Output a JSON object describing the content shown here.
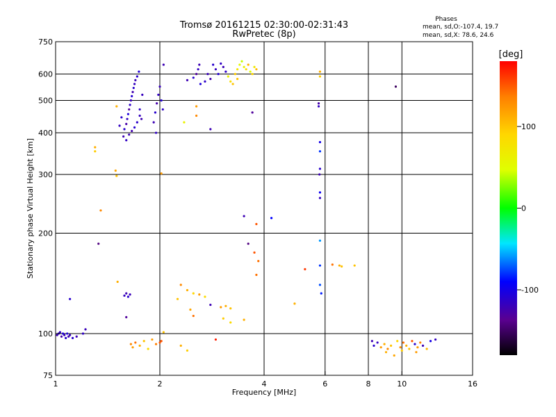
{
  "header": {
    "title": "Tromsø 20161215 02:30:00-02:31:43",
    "subtitle": "RwPretec (8p)"
  },
  "stats": {
    "heading": "Phases",
    "line_o": "mean, sd,O:-107.4, 19.7",
    "line_x": "mean, sd,X:  78.6, 24.6"
  },
  "colorbar": {
    "label": "[deg]",
    "min": -180,
    "max": 180,
    "ticks": [
      {
        "value": 100,
        "label": "100"
      },
      {
        "value": 0,
        "label": "0"
      },
      {
        "value": -100,
        "label": "-100"
      }
    ]
  },
  "chart_data": {
    "type": "scatter",
    "xlabel": "Frequency [MHz]",
    "ylabel": "Stationary phase Virtual Height [km]",
    "x_scale": "log",
    "y_scale": "log",
    "xlim": [
      1,
      16
    ],
    "ylim": [
      75,
      750
    ],
    "x_ticks": [
      {
        "value": 1,
        "label": "1"
      },
      {
        "value": 2,
        "label": "2"
      },
      {
        "value": 4,
        "label": "4"
      },
      {
        "value": 6,
        "label": "6"
      },
      {
        "value": 8,
        "label": "8"
      },
      {
        "value": 10,
        "label": "10"
      },
      {
        "value": 16,
        "label": "16"
      }
    ],
    "y_ticks": [
      {
        "value": 75,
        "label": "75"
      },
      {
        "value": 100,
        "label": "100"
      },
      {
        "value": 200,
        "label": "200"
      },
      {
        "value": 300,
        "label": "300"
      },
      {
        "value": 400,
        "label": "400"
      },
      {
        "value": 500,
        "label": "500"
      },
      {
        "value": 600,
        "label": "600"
      },
      {
        "value": 750,
        "label": "750"
      }
    ],
    "x_gridlines": [
      2,
      4,
      6,
      8,
      10
    ],
    "y_gridlines": [
      100,
      200,
      300,
      400,
      500,
      600
    ],
    "points": [
      {
        "x": 1.01,
        "y": 99,
        "phase": -120
      },
      {
        "x": 1.02,
        "y": 100,
        "phase": -110
      },
      {
        "x": 1.03,
        "y": 101,
        "phase": -115
      },
      {
        "x": 1.04,
        "y": 98,
        "phase": -125
      },
      {
        "x": 1.05,
        "y": 100,
        "phase": -105
      },
      {
        "x": 1.06,
        "y": 99,
        "phase": -118
      },
      {
        "x": 1.07,
        "y": 97,
        "phase": -112
      },
      {
        "x": 1.08,
        "y": 100,
        "phase": -108
      },
      {
        "x": 1.09,
        "y": 98,
        "phase": -122
      },
      {
        "x": 1.1,
        "y": 99,
        "phase": -116
      },
      {
        "x": 1.12,
        "y": 97,
        "phase": -110
      },
      {
        "x": 1.15,
        "y": 98,
        "phase": -120
      },
      {
        "x": 1.2,
        "y": 100,
        "phase": -114
      },
      {
        "x": 1.22,
        "y": 103,
        "phase": -118
      },
      {
        "x": 1.1,
        "y": 127,
        "phase": -110
      },
      {
        "x": 1.3,
        "y": 352,
        "phase": 95
      },
      {
        "x": 1.3,
        "y": 362,
        "phase": 110
      },
      {
        "x": 1.35,
        "y": 234,
        "phase": 130
      },
      {
        "x": 1.33,
        "y": 186,
        "phase": -140
      },
      {
        "x": 1.49,
        "y": 308,
        "phase": 115
      },
      {
        "x": 1.5,
        "y": 297,
        "phase": 100
      },
      {
        "x": 1.51,
        "y": 143,
        "phase": 110
      },
      {
        "x": 1.58,
        "y": 130,
        "phase": -115
      },
      {
        "x": 1.6,
        "y": 132,
        "phase": -120
      },
      {
        "x": 1.62,
        "y": 129,
        "phase": -110
      },
      {
        "x": 1.64,
        "y": 131,
        "phase": -118
      },
      {
        "x": 1.6,
        "y": 112,
        "phase": -130
      },
      {
        "x": 1.65,
        "y": 93,
        "phase": 130
      },
      {
        "x": 1.67,
        "y": 91,
        "phase": 120
      },
      {
        "x": 1.7,
        "y": 94,
        "phase": 140
      },
      {
        "x": 1.75,
        "y": 92,
        "phase": 110
      },
      {
        "x": 1.8,
        "y": 95,
        "phase": 100
      },
      {
        "x": 1.85,
        "y": 90,
        "phase": 85
      },
      {
        "x": 1.9,
        "y": 96,
        "phase": 120
      },
      {
        "x": 1.95,
        "y": 93,
        "phase": 135
      },
      {
        "x": 2.0,
        "y": 94,
        "phase": 150
      },
      {
        "x": 1.57,
        "y": 390,
        "phase": -120
      },
      {
        "x": 1.58,
        "y": 410,
        "phase": -110
      },
      {
        "x": 1.6,
        "y": 425,
        "phase": -125
      },
      {
        "x": 1.61,
        "y": 440,
        "phase": -115
      },
      {
        "x": 1.62,
        "y": 455,
        "phase": -105
      },
      {
        "x": 1.63,
        "y": 470,
        "phase": -130
      },
      {
        "x": 1.64,
        "y": 485,
        "phase": -112
      },
      {
        "x": 1.65,
        "y": 500,
        "phase": -118
      },
      {
        "x": 1.66,
        "y": 515,
        "phase": -108
      },
      {
        "x": 1.67,
        "y": 530,
        "phase": -122
      },
      {
        "x": 1.68,
        "y": 545,
        "phase": -110
      },
      {
        "x": 1.69,
        "y": 560,
        "phase": -116
      },
      {
        "x": 1.7,
        "y": 575,
        "phase": -119
      },
      {
        "x": 1.72,
        "y": 590,
        "phase": -111
      },
      {
        "x": 1.74,
        "y": 610,
        "phase": -107
      },
      {
        "x": 1.75,
        "y": 470,
        "phase": -113
      },
      {
        "x": 1.77,
        "y": 440,
        "phase": -121
      },
      {
        "x": 1.78,
        "y": 520,
        "phase": -117
      },
      {
        "x": 1.6,
        "y": 380,
        "phase": -114
      },
      {
        "x": 1.63,
        "y": 395,
        "phase": -119
      },
      {
        "x": 1.66,
        "y": 405,
        "phase": -123
      },
      {
        "x": 1.69,
        "y": 415,
        "phase": -109
      },
      {
        "x": 1.72,
        "y": 430,
        "phase": -112
      },
      {
        "x": 1.75,
        "y": 450,
        "phase": -116
      },
      {
        "x": 1.53,
        "y": 420,
        "phase": -115
      },
      {
        "x": 1.55,
        "y": 445,
        "phase": -110
      },
      {
        "x": 1.5,
        "y": 480,
        "phase": 110
      },
      {
        "x": 1.92,
        "y": 430,
        "phase": -120
      },
      {
        "x": 1.94,
        "y": 460,
        "phase": -110
      },
      {
        "x": 1.96,
        "y": 490,
        "phase": -125
      },
      {
        "x": 1.98,
        "y": 520,
        "phase": -115
      },
      {
        "x": 2.0,
        "y": 550,
        "phase": -118
      },
      {
        "x": 2.02,
        "y": 500,
        "phase": -108
      },
      {
        "x": 2.04,
        "y": 470,
        "phase": -112
      },
      {
        "x": 1.95,
        "y": 400,
        "phase": -114
      },
      {
        "x": 2.05,
        "y": 640,
        "phase": -120
      },
      {
        "x": 2.02,
        "y": 302,
        "phase": 120
      },
      {
        "x": 2.05,
        "y": 101,
        "phase": 100
      },
      {
        "x": 2.02,
        "y": 95,
        "phase": 150
      },
      {
        "x": 2.4,
        "y": 575,
        "phase": -120
      },
      {
        "x": 2.5,
        "y": 585,
        "phase": -110
      },
      {
        "x": 2.55,
        "y": 600,
        "phase": -130
      },
      {
        "x": 2.58,
        "y": 620,
        "phase": -115
      },
      {
        "x": 2.6,
        "y": 640,
        "phase": -120
      },
      {
        "x": 2.62,
        "y": 560,
        "phase": -105
      },
      {
        "x": 2.7,
        "y": 570,
        "phase": -112
      },
      {
        "x": 2.75,
        "y": 600,
        "phase": -118
      },
      {
        "x": 2.8,
        "y": 580,
        "phase": -122
      },
      {
        "x": 2.85,
        "y": 640,
        "phase": -110
      },
      {
        "x": 2.9,
        "y": 620,
        "phase": -116
      },
      {
        "x": 2.95,
        "y": 600,
        "phase": -108
      },
      {
        "x": 3.0,
        "y": 645,
        "phase": -114
      },
      {
        "x": 3.05,
        "y": 630,
        "phase": -119
      },
      {
        "x": 3.1,
        "y": 610,
        "phase": -112
      },
      {
        "x": 3.15,
        "y": 590,
        "phase": 60
      },
      {
        "x": 3.2,
        "y": 570,
        "phase": 80
      },
      {
        "x": 3.25,
        "y": 560,
        "phase": 100
      },
      {
        "x": 3.3,
        "y": 600,
        "phase": 95
      },
      {
        "x": 3.35,
        "y": 620,
        "phase": 75
      },
      {
        "x": 3.4,
        "y": 640,
        "phase": 50
      },
      {
        "x": 3.45,
        "y": 655,
        "phase": 40
      },
      {
        "x": 3.5,
        "y": 630,
        "phase": 60
      },
      {
        "x": 3.55,
        "y": 620,
        "phase": 85
      },
      {
        "x": 3.6,
        "y": 640,
        "phase": 110
      },
      {
        "x": 3.65,
        "y": 610,
        "phase": 45
      },
      {
        "x": 3.7,
        "y": 600,
        "phase": 90
      },
      {
        "x": 3.75,
        "y": 630,
        "phase": 70
      },
      {
        "x": 3.8,
        "y": 620,
        "phase": 105
      },
      {
        "x": 3.35,
        "y": 580,
        "phase": 100
      },
      {
        "x": 2.35,
        "y": 430,
        "phase": 60
      },
      {
        "x": 2.55,
        "y": 450,
        "phase": 130
      },
      {
        "x": 2.8,
        "y": 410,
        "phase": -120
      },
      {
        "x": 2.55,
        "y": 480,
        "phase": 120
      },
      {
        "x": 2.3,
        "y": 140,
        "phase": 130
      },
      {
        "x": 2.4,
        "y": 135,
        "phase": 110
      },
      {
        "x": 2.5,
        "y": 132,
        "phase": 90
      },
      {
        "x": 2.6,
        "y": 131,
        "phase": 120
      },
      {
        "x": 2.7,
        "y": 129,
        "phase": 85
      },
      {
        "x": 2.8,
        "y": 122,
        "phase": -120
      },
      {
        "x": 2.25,
        "y": 127,
        "phase": 100
      },
      {
        "x": 2.45,
        "y": 118,
        "phase": 115
      },
      {
        "x": 2.5,
        "y": 113,
        "phase": 140
      },
      {
        "x": 3.0,
        "y": 120,
        "phase": 120
      },
      {
        "x": 3.1,
        "y": 121,
        "phase": 110
      },
      {
        "x": 3.2,
        "y": 119,
        "phase": 100
      },
      {
        "x": 3.05,
        "y": 111,
        "phase": 95
      },
      {
        "x": 3.2,
        "y": 108,
        "phase": 85
      },
      {
        "x": 3.5,
        "y": 110,
        "phase": 110
      },
      {
        "x": 2.3,
        "y": 92,
        "phase": 110
      },
      {
        "x": 2.4,
        "y": 89,
        "phase": 95
      },
      {
        "x": 2.9,
        "y": 96,
        "phase": 170
      },
      {
        "x": 3.5,
        "y": 225,
        "phase": -120
      },
      {
        "x": 3.6,
        "y": 186,
        "phase": -140
      },
      {
        "x": 3.75,
        "y": 175,
        "phase": 150
      },
      {
        "x": 3.85,
        "y": 165,
        "phase": 140
      },
      {
        "x": 3.8,
        "y": 150,
        "phase": 140
      },
      {
        "x": 3.8,
        "y": 213,
        "phase": 150
      },
      {
        "x": 3.7,
        "y": 460,
        "phase": -130
      },
      {
        "x": 4.2,
        "y": 222,
        "phase": -90
      },
      {
        "x": 5.8,
        "y": 590,
        "phase": 95
      },
      {
        "x": 5.8,
        "y": 610,
        "phase": 110
      },
      {
        "x": 5.75,
        "y": 480,
        "phase": -115
      },
      {
        "x": 5.75,
        "y": 490,
        "phase": -125
      },
      {
        "x": 5.8,
        "y": 375,
        "phase": -100
      },
      {
        "x": 5.8,
        "y": 352,
        "phase": -80
      },
      {
        "x": 5.8,
        "y": 312,
        "phase": -110
      },
      {
        "x": 5.78,
        "y": 300,
        "phase": -120
      },
      {
        "x": 5.8,
        "y": 265,
        "phase": -95
      },
      {
        "x": 5.8,
        "y": 255,
        "phase": -115
      },
      {
        "x": 5.8,
        "y": 190,
        "phase": -60
      },
      {
        "x": 5.8,
        "y": 160,
        "phase": -80
      },
      {
        "x": 5.8,
        "y": 140,
        "phase": -75
      },
      {
        "x": 5.85,
        "y": 132,
        "phase": -85
      },
      {
        "x": 5.25,
        "y": 156,
        "phase": 160
      },
      {
        "x": 4.9,
        "y": 123,
        "phase": 110
      },
      {
        "x": 6.3,
        "y": 161,
        "phase": 140
      },
      {
        "x": 6.6,
        "y": 160,
        "phase": 110
      },
      {
        "x": 6.7,
        "y": 159,
        "phase": 100
      },
      {
        "x": 7.3,
        "y": 160,
        "phase": 100
      },
      {
        "x": 9.6,
        "y": 550,
        "phase": -150
      },
      {
        "x": 8.2,
        "y": 95,
        "phase": -120
      },
      {
        "x": 8.3,
        "y": 92,
        "phase": -110
      },
      {
        "x": 8.5,
        "y": 94,
        "phase": -115
      },
      {
        "x": 8.7,
        "y": 91,
        "phase": 120
      },
      {
        "x": 8.9,
        "y": 93,
        "phase": 110
      },
      {
        "x": 9.1,
        "y": 90,
        "phase": 130
      },
      {
        "x": 9.3,
        "y": 92,
        "phase": 100
      },
      {
        "x": 9.5,
        "y": 86,
        "phase": 115
      },
      {
        "x": 9.7,
        "y": 95,
        "phase": 90
      },
      {
        "x": 9.9,
        "y": 91,
        "phase": 125
      },
      {
        "x": 10.1,
        "y": 94,
        "phase": 140
      },
      {
        "x": 10.3,
        "y": 92,
        "phase": 110
      },
      {
        "x": 10.5,
        "y": 90,
        "phase": 100
      },
      {
        "x": 10.7,
        "y": 95,
        "phase": 150
      },
      {
        "x": 10.9,
        "y": 93,
        "phase": -110
      },
      {
        "x": 11.1,
        "y": 91,
        "phase": 120
      },
      {
        "x": 11.3,
        "y": 94,
        "phase": 135
      },
      {
        "x": 11.5,
        "y": 92,
        "phase": -120
      },
      {
        "x": 11.8,
        "y": 90,
        "phase": 105
      },
      {
        "x": 12.1,
        "y": 95,
        "phase": -100
      },
      {
        "x": 12.5,
        "y": 96,
        "phase": -115
      },
      {
        "x": 9.0,
        "y": 88,
        "phase": 110
      },
      {
        "x": 10.0,
        "y": 89,
        "phase": 95
      },
      {
        "x": 11.0,
        "y": 88,
        "phase": 120
      }
    ]
  }
}
